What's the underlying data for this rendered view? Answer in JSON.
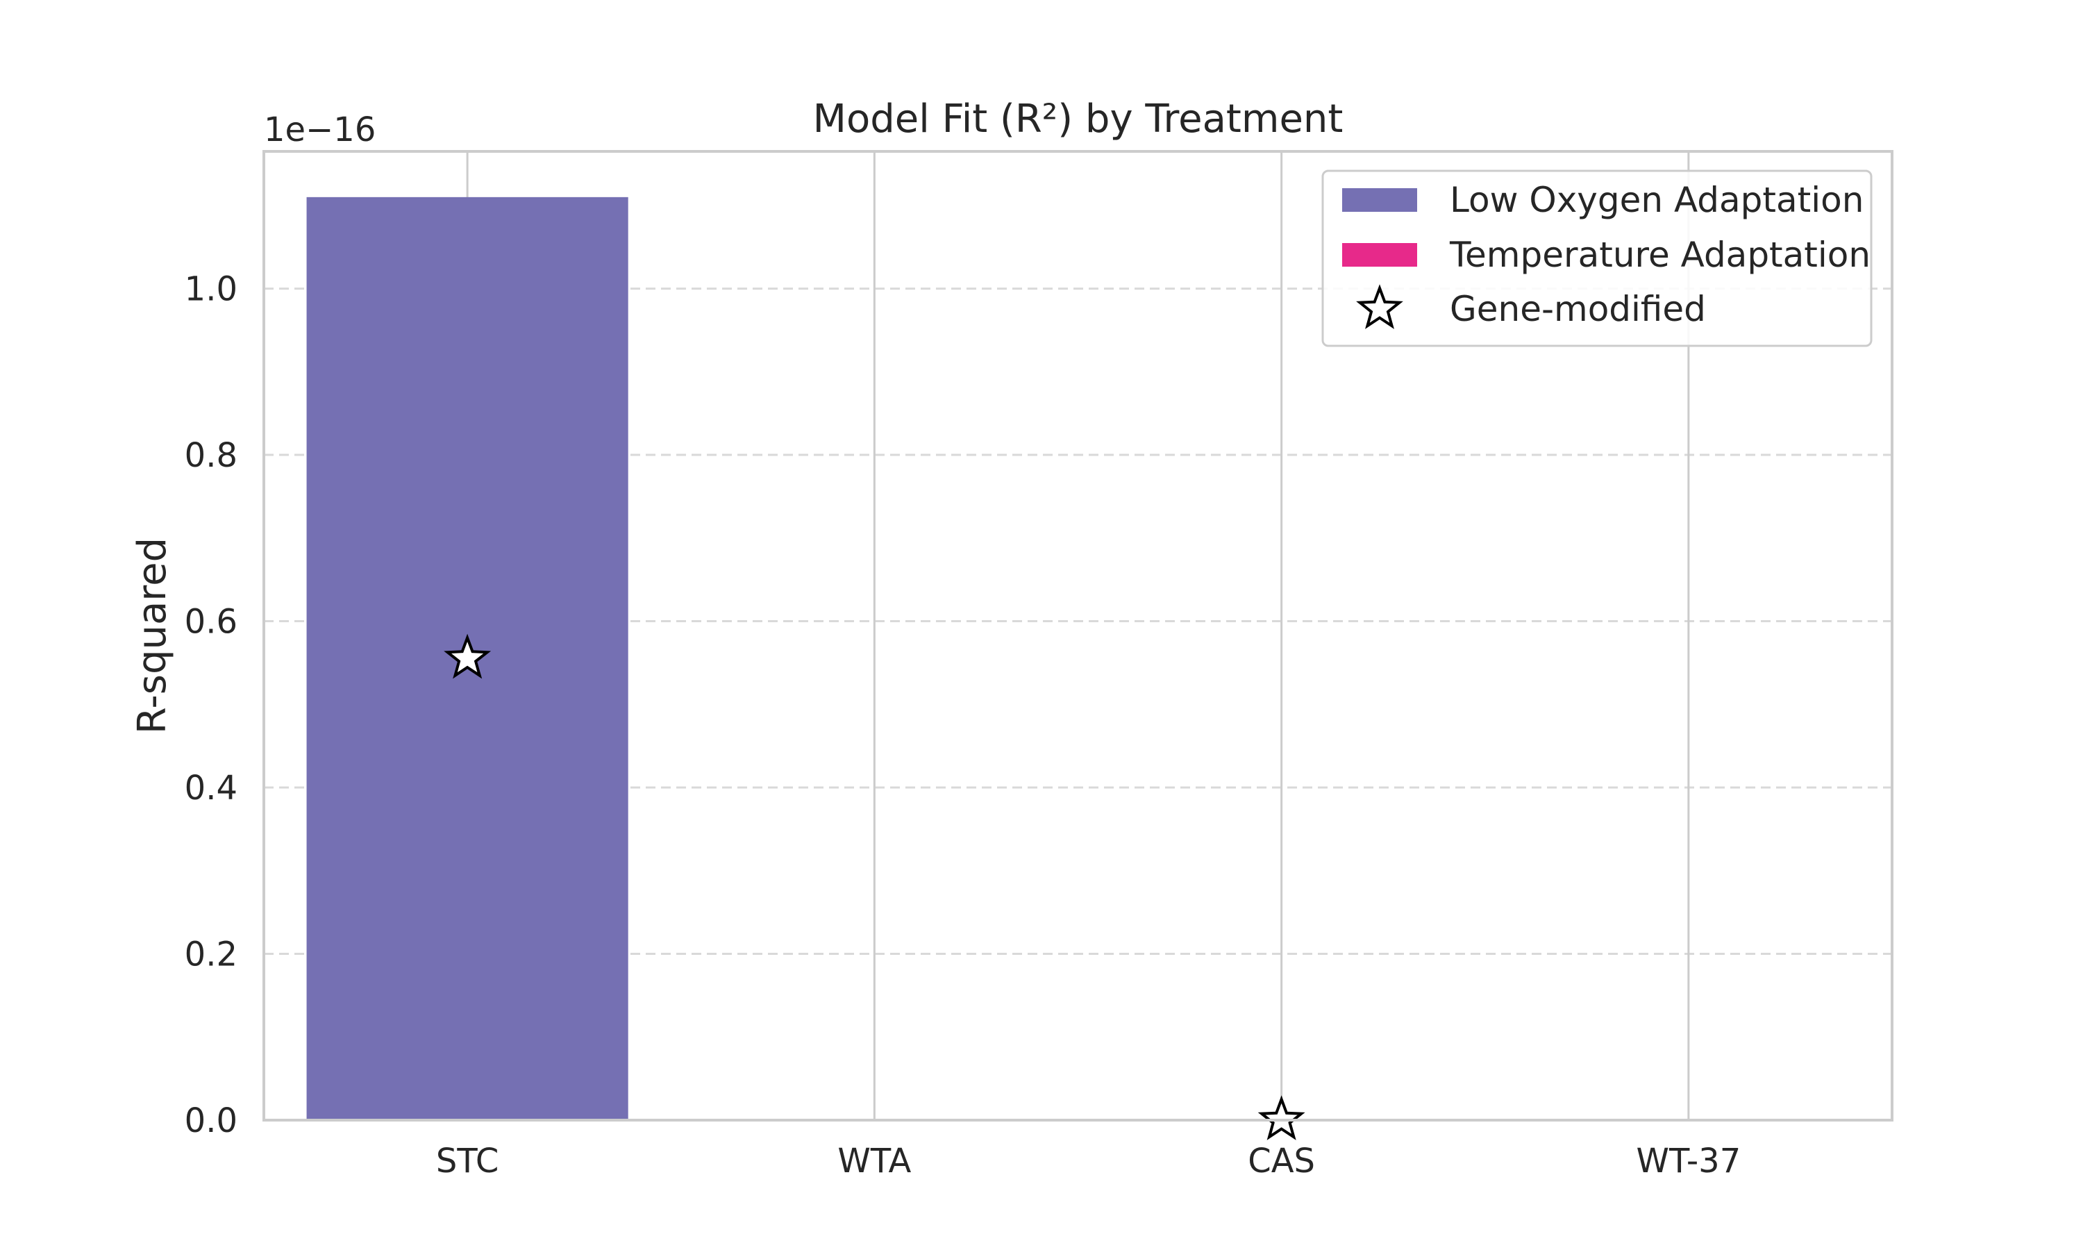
{
  "chart_data": {
    "type": "bar",
    "title": "Model Fit (R²) by Treatment",
    "xlabel": "",
    "ylabel": "R-squared",
    "scale_multiplier_label": "1e−16",
    "categories": [
      "STC",
      "WTA",
      "CAS",
      "WT-37"
    ],
    "series": [
      {
        "name": "Low Oxygen Adaptation",
        "color": "#7570b3",
        "values": [
          1.11e-16,
          0,
          null,
          null
        ]
      },
      {
        "name": "Temperature Adaptation",
        "color": "#e7298a",
        "values": [
          null,
          null,
          0,
          0
        ]
      }
    ],
    "marker_series": {
      "name": "Gene-modified",
      "marker": "star-outline",
      "points": [
        {
          "category": "STC",
          "y": 5.55e-17
        },
        {
          "category": "CAS",
          "y": 0
        }
      ]
    },
    "yticks": [
      0.0,
      0.2,
      0.4,
      0.6,
      0.8,
      1.0
    ],
    "ytick_labels": [
      "0.0",
      "0.2",
      "0.4",
      "0.6",
      "0.8",
      "1.0"
    ],
    "ylim_scaled": [
      0,
      1.165
    ],
    "y_scale_factor": 1e-16,
    "grid": "y-dashed",
    "legend_position": "top-right"
  }
}
